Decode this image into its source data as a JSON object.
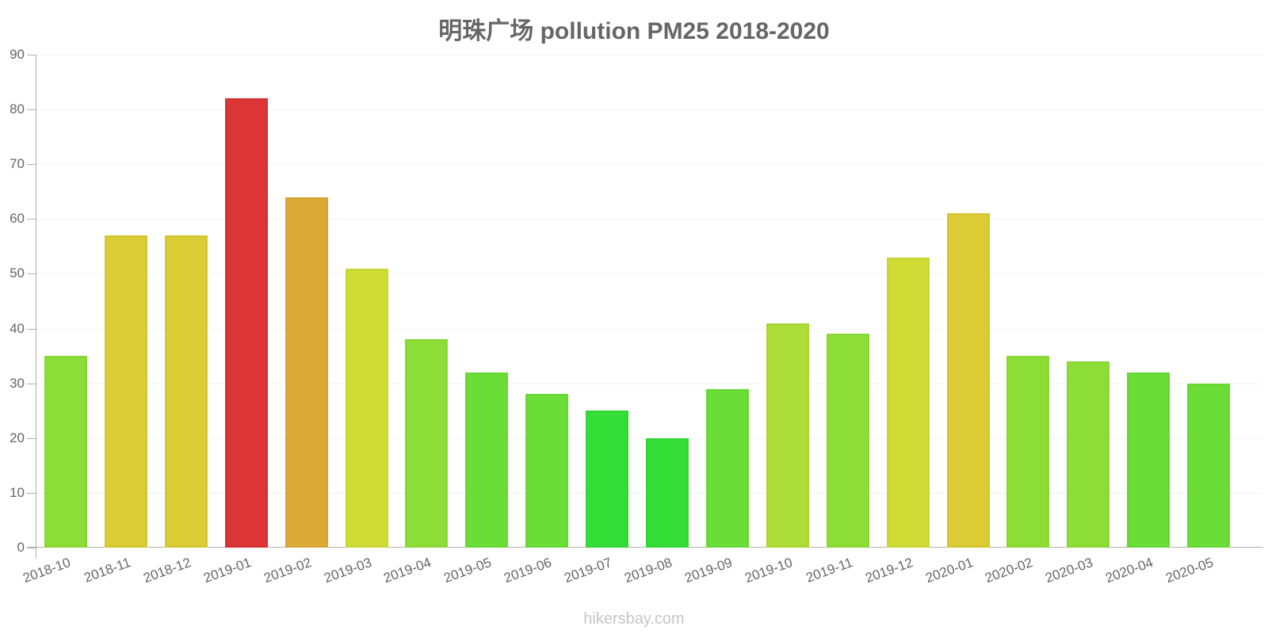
{
  "title": "明珠广场 pollution PM25 2018-2020",
  "footer": "hikersbay.com",
  "chart_data": {
    "type": "bar",
    "title": "明珠广场 pollution PM25 2018-2020",
    "xlabel": "",
    "ylabel": "",
    "ylim": [
      0,
      90
    ],
    "yticks": [
      0,
      10,
      20,
      30,
      40,
      50,
      60,
      70,
      80,
      90
    ],
    "grid": true,
    "legend": null,
    "categories": [
      "2018-10",
      "2018-11",
      "2018-12",
      "2019-01",
      "2019-02",
      "2019-03",
      "2019-04",
      "2019-05",
      "2019-06",
      "2019-07",
      "2019-08",
      "2019-09",
      "2019-10",
      "2019-11",
      "2019-12",
      "2020-01",
      "2020-02",
      "2020-03",
      "2020-04",
      "2020-05"
    ],
    "values": [
      35,
      57,
      57,
      82,
      64,
      51,
      38,
      32,
      28,
      25,
      20,
      29,
      41,
      39,
      53,
      61,
      35,
      34,
      32,
      30
    ],
    "colors": [
      "#8ddd37",
      "#dbcb34",
      "#dbcb34",
      "#db3535",
      "#dba935",
      "#cfdc35",
      "#8ddd37",
      "#6ade37",
      "#6ade37",
      "#35dd37",
      "#35dd37",
      "#6ade37",
      "#addd37",
      "#8ddd37",
      "#cfdc35",
      "#dbcb34",
      "#8ddd37",
      "#8ddd37",
      "#6ade37",
      "#6ade37"
    ]
  }
}
